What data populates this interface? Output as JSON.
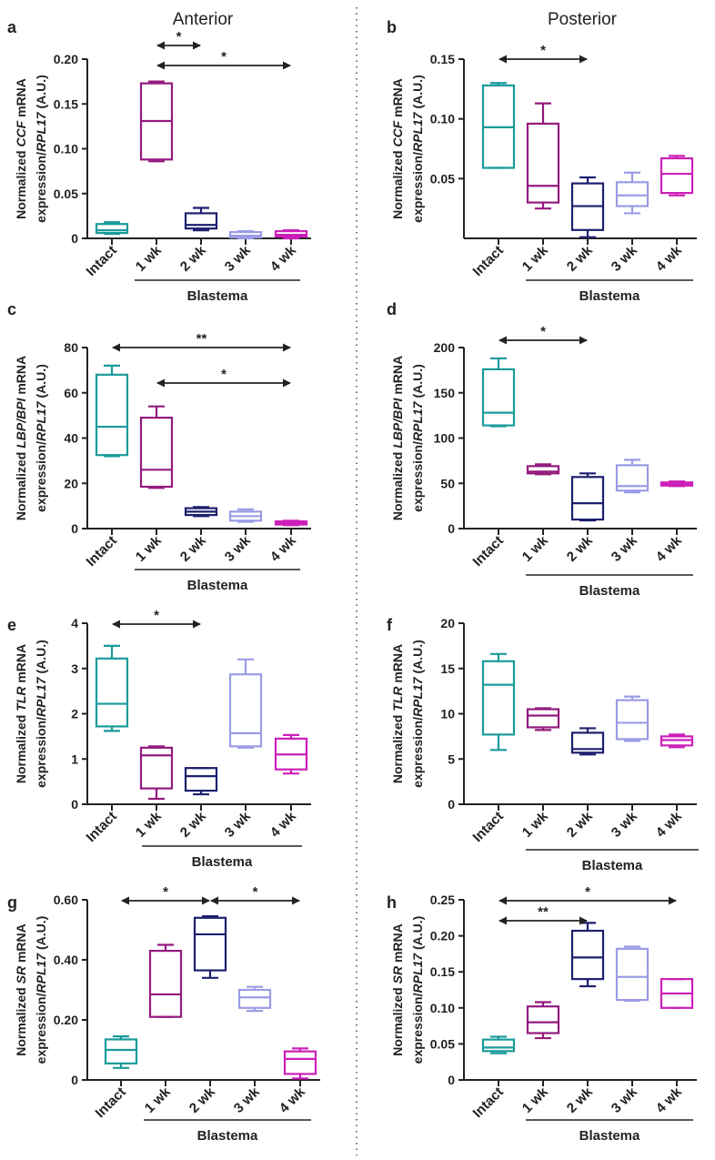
{
  "column_titles": [
    "Anterior",
    "Posterior"
  ],
  "colors": {
    "Intact": "#1a9a9c",
    "1 wk": "#931a7e",
    "2 wk": "#1c1f6e",
    "3 wk": "#9b9be6",
    "4 wk": "#cc1fb8"
  },
  "chart_data": [
    {
      "panel": "a",
      "type": "box",
      "column": "Anterior",
      "ylabel_pre": "Normalized ",
      "ylabel_gene": "CCF",
      "ylabel_post": " mRNA",
      "ylabel_line2_pre": "expression/",
      "ylabel_line2_gene": "RPL17",
      "ylabel_line2_post": " (A.U.)",
      "categories": [
        "Intact",
        "1 wk",
        "2 wk",
        "3 wk",
        "4 wk"
      ],
      "group_label": "Blastema",
      "ylim": [
        0,
        0.2
      ],
      "yticks": [
        0,
        0.05,
        0.1,
        0.15,
        0.2
      ],
      "ytick_labels": [
        "0",
        "0.05",
        "0.10",
        "0.15",
        "0.20"
      ],
      "boxes": [
        {
          "min": 0.005,
          "q1": 0.006,
          "median": 0.009,
          "q3": 0.016,
          "max": 0.018
        },
        {
          "min": 0.086,
          "q1": 0.088,
          "median": 0.131,
          "q3": 0.173,
          "max": 0.175
        },
        {
          "min": 0.009,
          "q1": 0.011,
          "median": 0.015,
          "q3": 0.028,
          "max": 0.034
        },
        {
          "min": 0.0,
          "q1": 0.001,
          "median": 0.003,
          "q3": 0.007,
          "max": 0.008
        },
        {
          "min": 0.0,
          "q1": 0.002,
          "median": 0.004,
          "q3": 0.008,
          "max": 0.009
        }
      ],
      "significance": [
        {
          "from": 1,
          "to": 2,
          "label": "*"
        },
        {
          "from": 1,
          "to": 4,
          "label": "*"
        }
      ]
    },
    {
      "panel": "b",
      "type": "box",
      "column": "Posterior",
      "ylabel_pre": "Normalized ",
      "ylabel_gene": "CCF",
      "ylabel_post": " mRNA",
      "ylabel_line2_pre": "expression/",
      "ylabel_line2_gene": "RPL17",
      "ylabel_line2_post": " (A.U.)",
      "categories": [
        "Intact",
        "1 wk",
        "2 wk",
        "3 wk",
        "4 wk"
      ],
      "group_label": "Blastema",
      "ylim": [
        0,
        0.15
      ],
      "yticks": [
        0.05,
        0.1,
        0.15
      ],
      "ytick_labels": [
        "0.05",
        "0.10",
        "0.15"
      ],
      "boxes": [
        {
          "min": 0.059,
          "q1": 0.059,
          "median": 0.093,
          "q3": 0.128,
          "max": 0.13
        },
        {
          "min": 0.025,
          "q1": 0.03,
          "median": 0.044,
          "q3": 0.096,
          "max": 0.113
        },
        {
          "min": 0.001,
          "q1": 0.007,
          "median": 0.027,
          "q3": 0.046,
          "max": 0.051
        },
        {
          "min": 0.021,
          "q1": 0.027,
          "median": 0.036,
          "q3": 0.047,
          "max": 0.055
        },
        {
          "min": 0.036,
          "q1": 0.038,
          "median": 0.054,
          "q3": 0.067,
          "max": 0.069
        }
      ],
      "significance": [
        {
          "from": 0,
          "to": 2,
          "label": "*"
        }
      ]
    },
    {
      "panel": "c",
      "type": "box",
      "column": "Anterior",
      "ylabel_pre": "Normalized ",
      "ylabel_gene": "LBP/BPI",
      "ylabel_post": " mRNA",
      "ylabel_line2_pre": "expression/",
      "ylabel_line2_gene": "RPL17",
      "ylabel_line2_post": " (A.U.)",
      "categories": [
        "Intact",
        "1 wk",
        "2 wk",
        "3 wk",
        "4 wk"
      ],
      "group_label": "Blastema",
      "ylim": [
        0,
        80
      ],
      "yticks": [
        0,
        20,
        40,
        60,
        80
      ],
      "ytick_labels": [
        "0",
        "20",
        "40",
        "60",
        "80"
      ],
      "boxes": [
        {
          "min": 32,
          "q1": 32.5,
          "median": 45,
          "q3": 68,
          "max": 72
        },
        {
          "min": 18,
          "q1": 18.5,
          "median": 26,
          "q3": 49,
          "max": 54
        },
        {
          "min": 5.5,
          "q1": 6,
          "median": 7.5,
          "q3": 9,
          "max": 9.5
        },
        {
          "min": 3,
          "q1": 3.5,
          "median": 5.5,
          "q3": 7.5,
          "max": 8.5
        },
        {
          "min": 1.5,
          "q1": 1.8,
          "median": 2.5,
          "q3": 3.2,
          "max": 3.5
        }
      ],
      "significance": [
        {
          "from": 0,
          "to": 4,
          "label": "**"
        },
        {
          "from": 1,
          "to": 4,
          "label": "*"
        }
      ]
    },
    {
      "panel": "d",
      "type": "box",
      "column": "Posterior",
      "ylabel_pre": "Normalized ",
      "ylabel_gene": "LBP/BPI",
      "ylabel_post": " mRNA",
      "ylabel_line2_pre": "expression/",
      "ylabel_line2_gene": "RPL17",
      "ylabel_line2_post": " (A.U.)",
      "categories": [
        "Intact",
        "1 wk",
        "2 wk",
        "3 wk",
        "4 wk"
      ],
      "group_label": "Blastema",
      "ylim": [
        0,
        200
      ],
      "yticks": [
        0,
        50,
        100,
        150,
        200
      ],
      "ytick_labels": [
        "0",
        "50",
        "100",
        "150",
        "200"
      ],
      "boxes": [
        {
          "min": 113,
          "q1": 114,
          "median": 128,
          "q3": 176,
          "max": 188
        },
        {
          "min": 60,
          "q1": 61,
          "median": 63,
          "q3": 69,
          "max": 71
        },
        {
          "min": 9,
          "q1": 10,
          "median": 28,
          "q3": 57,
          "max": 61
        },
        {
          "min": 40,
          "q1": 42,
          "median": 47,
          "q3": 70,
          "max": 76
        },
        {
          "min": 47,
          "q1": 47.5,
          "median": 49,
          "q3": 51,
          "max": 52
        }
      ],
      "significance": [
        {
          "from": 0,
          "to": 2,
          "label": "*"
        }
      ]
    },
    {
      "panel": "e",
      "type": "box",
      "column": "Anterior",
      "ylabel_pre": "Normalized ",
      "ylabel_gene": "TLR",
      "ylabel_post": " mRNA",
      "ylabel_line2_pre": "expression/",
      "ylabel_line2_gene": "RPL17",
      "ylabel_line2_post": " (A.U.)",
      "categories": [
        "Intact",
        "1 wk",
        "2 wk",
        "3 wk",
        "4 wk"
      ],
      "group_label": "Blastema",
      "ylim": [
        0,
        4
      ],
      "yticks": [
        0,
        1,
        2,
        3,
        4
      ],
      "ytick_labels": [
        "0",
        "1",
        "2",
        "3",
        "4"
      ],
      "boxes": [
        {
          "min": 1.62,
          "q1": 1.72,
          "median": 2.22,
          "q3": 3.22,
          "max": 3.5
        },
        {
          "min": 0.12,
          "q1": 0.35,
          "median": 1.08,
          "q3": 1.25,
          "max": 1.28
        },
        {
          "min": 0.22,
          "q1": 0.3,
          "median": 0.62,
          "q3": 0.8,
          "max": 0.8
        },
        {
          "min": 1.25,
          "q1": 1.28,
          "median": 1.57,
          "q3": 2.87,
          "max": 3.2
        },
        {
          "min": 0.68,
          "q1": 0.77,
          "median": 1.1,
          "q3": 1.45,
          "max": 1.53
        }
      ],
      "significance": [
        {
          "from": 0,
          "to": 2,
          "label": "*"
        }
      ]
    },
    {
      "panel": "f",
      "type": "box",
      "column": "Posterior",
      "ylabel_pre": "Normalized ",
      "ylabel_gene": "TLR",
      "ylabel_post": " mRNA",
      "ylabel_line2_pre": "expression/",
      "ylabel_line2_gene": "RPL17",
      "ylabel_line2_post": " (A.U.)",
      "categories": [
        "Intact",
        "1 wk",
        "2 wk",
        "3 wk",
        "4 wk"
      ],
      "group_label": "Blastema",
      "ylim": [
        0,
        20
      ],
      "yticks": [
        0,
        5,
        10,
        15,
        20
      ],
      "ytick_labels": [
        "0",
        "5",
        "10",
        "15",
        "20"
      ],
      "boxes": [
        {
          "min": 6,
          "q1": 7.7,
          "median": 13.2,
          "q3": 15.8,
          "max": 16.6
        },
        {
          "min": 8.2,
          "q1": 8.5,
          "median": 9.8,
          "q3": 10.5,
          "max": 10.6
        },
        {
          "min": 5.5,
          "q1": 5.7,
          "median": 6.1,
          "q3": 7.9,
          "max": 8.4
        },
        {
          "min": 7,
          "q1": 7.2,
          "median": 9,
          "q3": 11.5,
          "max": 11.9
        },
        {
          "min": 6.3,
          "q1": 6.5,
          "median": 7.1,
          "q3": 7.5,
          "max": 7.7
        }
      ],
      "significance": []
    },
    {
      "panel": "g",
      "type": "box",
      "column": "Anterior",
      "ylabel_pre": "Normalized ",
      "ylabel_gene": "SR",
      "ylabel_post": " mRNA",
      "ylabel_line2_pre": "expression/",
      "ylabel_line2_gene": "RPL17",
      "ylabel_line2_post": " (A.U.)",
      "categories": [
        "Intact",
        "1 wk",
        "2 wk",
        "3 wk",
        "4 wk"
      ],
      "group_label": "Blastema",
      "ylim": [
        0,
        0.6
      ],
      "yticks": [
        0,
        0.2,
        0.4,
        0.6
      ],
      "ytick_labels": [
        "0",
        "0.20",
        "0.40",
        "0.60"
      ],
      "boxes": [
        {
          "min": 0.04,
          "q1": 0.055,
          "median": 0.1,
          "q3": 0.135,
          "max": 0.145
        },
        {
          "min": 0.21,
          "q1": 0.21,
          "median": 0.285,
          "q3": 0.43,
          "max": 0.45
        },
        {
          "min": 0.34,
          "q1": 0.365,
          "median": 0.485,
          "q3": 0.54,
          "max": 0.545
        },
        {
          "min": 0.23,
          "q1": 0.24,
          "median": 0.275,
          "q3": 0.3,
          "max": 0.31
        },
        {
          "min": 0.005,
          "q1": 0.02,
          "median": 0.07,
          "q3": 0.095,
          "max": 0.105
        }
      ],
      "significance": [
        {
          "from": 0,
          "to": 2,
          "label": "*"
        },
        {
          "from": 2,
          "to": 4,
          "label": "*"
        }
      ]
    },
    {
      "panel": "h",
      "type": "box",
      "column": "Posterior",
      "ylabel_pre": "Normalized ",
      "ylabel_gene": "SR",
      "ylabel_post": " mRNA",
      "ylabel_line2_pre": "expression/",
      "ylabel_line2_gene": "RPL17",
      "ylabel_line2_post": " (A.U.)",
      "categories": [
        "Intact",
        "1 wk",
        "2 wk",
        "3 wk",
        "4 wk"
      ],
      "group_label": "Blastema",
      "ylim": [
        0,
        0.25
      ],
      "yticks": [
        0,
        0.05,
        0.1,
        0.15,
        0.2,
        0.25
      ],
      "ytick_labels": [
        "0",
        "0.05",
        "0.10",
        "0.15",
        "0.20",
        "0.25"
      ],
      "boxes": [
        {
          "min": 0.037,
          "q1": 0.04,
          "median": 0.045,
          "q3": 0.056,
          "max": 0.06
        },
        {
          "min": 0.058,
          "q1": 0.065,
          "median": 0.08,
          "q3": 0.102,
          "max": 0.108
        },
        {
          "min": 0.13,
          "q1": 0.14,
          "median": 0.17,
          "q3": 0.207,
          "max": 0.218
        },
        {
          "min": 0.11,
          "q1": 0.111,
          "median": 0.143,
          "q3": 0.182,
          "max": 0.185
        },
        {
          "min": 0.1,
          "q1": 0.1,
          "median": 0.12,
          "q3": 0.14,
          "max": 0.14
        }
      ],
      "significance": [
        {
          "from": 0,
          "to": 4,
          "label": "*"
        },
        {
          "from": 0,
          "to": 2,
          "label": "**"
        }
      ]
    }
  ]
}
